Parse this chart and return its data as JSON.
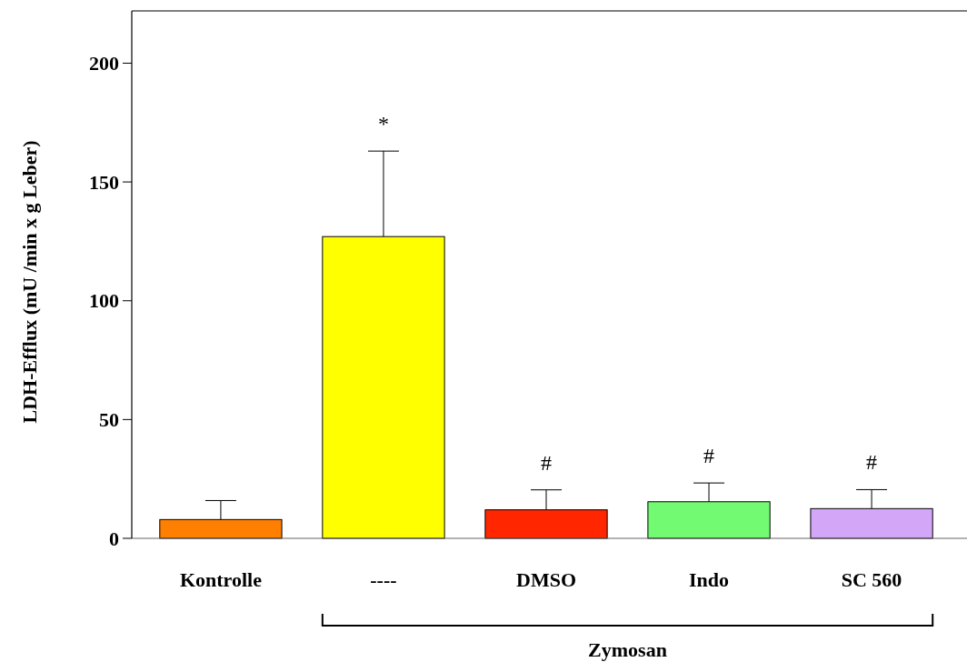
{
  "chart_data": {
    "type": "bar",
    "ylabel": "LDH-Efflux (mU /min x g Leber)",
    "categories": [
      "Kontrolle",
      "----",
      "DMSO",
      "Indo",
      "SC 560"
    ],
    "values": [
      7.9,
      127,
      12,
      15.4,
      12.5
    ],
    "colors": [
      "#ff7f00",
      "#ffff00",
      "#ff2600",
      "#73fa73",
      "#d4a6f7"
    ],
    "errors": [
      [
        7.9,
        15.9
      ],
      [
        127,
        163
      ],
      [
        12,
        20.4
      ],
      [
        15.4,
        23.3
      ],
      [
        12.5,
        20.5
      ]
    ],
    "ylim": [
      0,
      222
    ],
    "yticks": [
      0,
      50,
      100,
      150,
      200
    ],
    "grid": false,
    "annotations": [
      "*",
      "#",
      "#",
      "#",
      "Zymosan"
    ]
  }
}
